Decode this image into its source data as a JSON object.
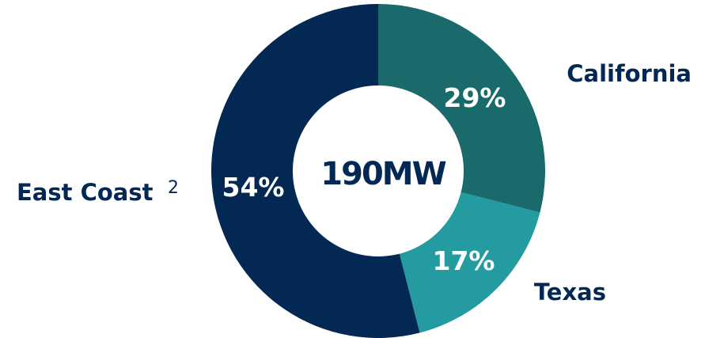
{
  "chart_data": {
    "type": "pie",
    "center_label": "190MW",
    "slices": [
      {
        "label": "California",
        "value": 29,
        "display": "29%",
        "color": "#1a6a6c"
      },
      {
        "label": "Texas",
        "value": 17,
        "display": "17%",
        "color": "#249ba0"
      },
      {
        "label": "East Coast",
        "value": 54,
        "display": "54%",
        "color": "#032854",
        "footnote": "2"
      }
    ],
    "label_color": "#032854"
  }
}
